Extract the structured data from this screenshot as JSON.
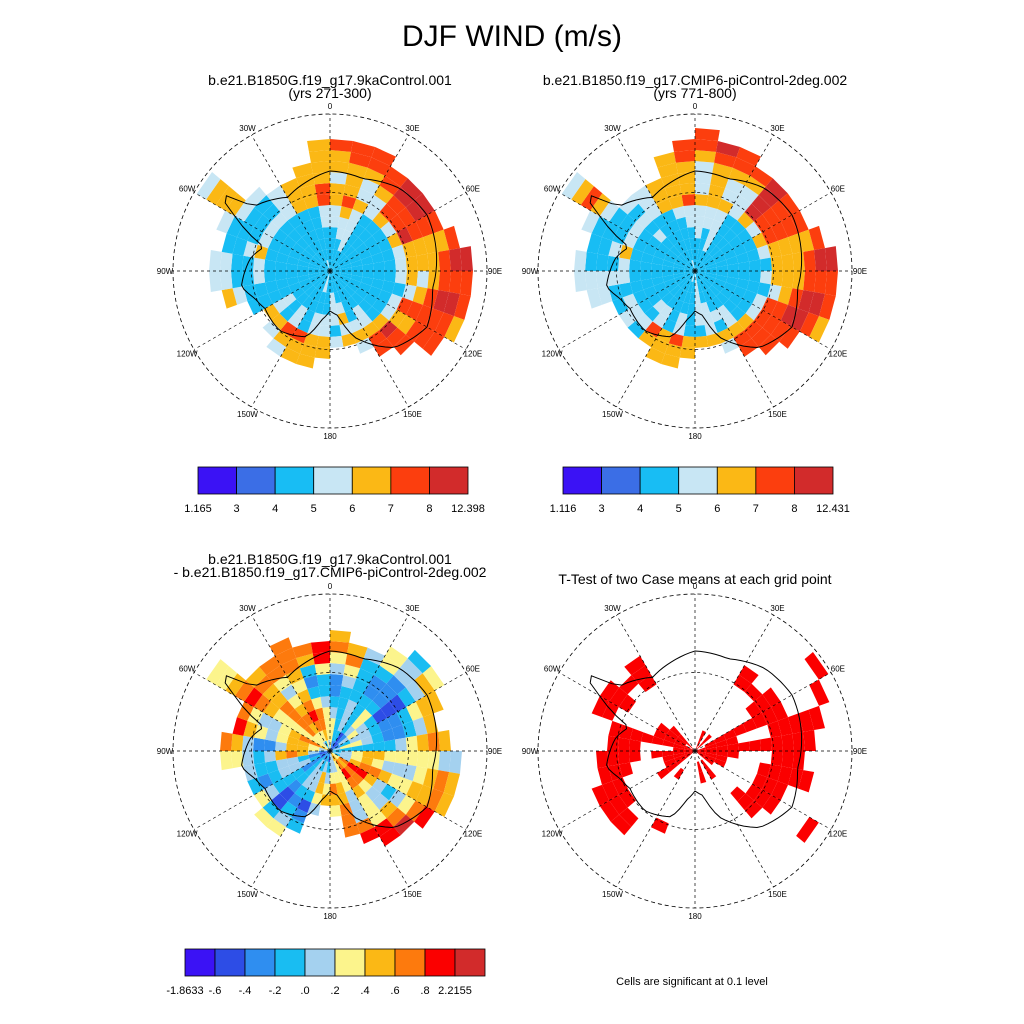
{
  "title": "DJF WIND (m/s)",
  "panels": [
    {
      "id": "p1",
      "title_lines": [
        "b.e21.B1850G.f19_g17.9kaControl.001",
        "(yrs 271-300)"
      ],
      "lon_labels": [
        "0",
        "30E",
        "60E",
        "90E",
        "120E",
        "150E",
        "180",
        "150W",
        "120W",
        "90W",
        "60W",
        "30W"
      ],
      "colorbar": {
        "colors": [
          "#3b12f5",
          "#3b6ee6",
          "#18bdf4",
          "#c8e6f4",
          "#fbb815",
          "#fc3e0e",
          "#d22b2b"
        ],
        "labels": [
          "1.165",
          "3",
          "4",
          "5",
          "6",
          "7",
          "8",
          "12.398"
        ]
      }
    },
    {
      "id": "p2",
      "title_lines": [
        "b.e21.B1850.f19_g17.CMIP6-piControl-2deg.002",
        "(yrs 771-800)"
      ],
      "lon_labels": [
        "0",
        "30E",
        "60E",
        "90E",
        "120E",
        "150E",
        "180",
        "150W",
        "120W",
        "90W",
        "60W",
        "30W"
      ],
      "colorbar": {
        "colors": [
          "#3b12f5",
          "#3b6ee6",
          "#18bdf4",
          "#c8e6f4",
          "#fbb815",
          "#fc3e0e",
          "#d22b2b"
        ],
        "labels": [
          "1.116",
          "3",
          "4",
          "5",
          "6",
          "7",
          "8",
          "12.431"
        ]
      }
    },
    {
      "id": "p3",
      "title_lines": [
        "b.e21.B1850G.f19_g17.9kaControl.001",
        "- b.e21.B1850.f19_g17.CMIP6-piControl-2deg.002"
      ],
      "lon_labels": [
        "0",
        "30E",
        "60E",
        "90E",
        "120E",
        "150E",
        "180",
        "150W",
        "120W",
        "90W",
        "60W",
        "30W"
      ],
      "colorbar": {
        "colors": [
          "#3b12f5",
          "#2d4de6",
          "#2f8ef0",
          "#19bdf2",
          "#a4d1ef",
          "#fcf48c",
          "#fbb815",
          "#fd7a0d",
          "#fb0000",
          "#d22b2b"
        ],
        "labels": [
          "-1.8633",
          "-.6",
          "-.4",
          "-.2",
          ".0",
          ".2",
          ".4",
          ".6",
          ".8",
          "2.2155"
        ]
      }
    },
    {
      "id": "p4",
      "title_lines": [
        "T-Test of two Case means at each grid point"
      ],
      "lon_labels": [
        "0",
        "30E",
        "60E",
        "90E",
        "120E",
        "150E",
        "180",
        "150W",
        "120W",
        "90W",
        "60W",
        "30W"
      ],
      "footnote": "Cells are significant at 0.1 level",
      "sig_color": "#fb0000"
    }
  ]
}
